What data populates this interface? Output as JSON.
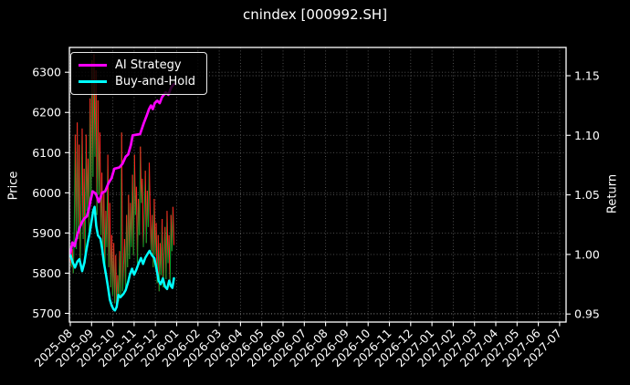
{
  "title": "cnindex [000992.SH]",
  "chart_data": {
    "type": "line",
    "title": "cnindex [000992.SH]",
    "background": "#000000",
    "grid": {
      "style": "dotted",
      "color": "#575757"
    },
    "x_axis": {
      "tick_labels": [
        "2025-08",
        "2025-09",
        "2025-10",
        "2025-11",
        "2025-12",
        "2026-01",
        "2026-02",
        "2026-03",
        "2026-04",
        "2026-05",
        "2026-06",
        "2026-07",
        "2026-08",
        "2026-09",
        "2026-10",
        "2026-11",
        "2026-12",
        "2027-01",
        "2027-02",
        "2027-03",
        "2027-04",
        "2027-05",
        "2027-06",
        "2027-07"
      ],
      "tick_rotation_deg": 45,
      "data_span_note": "data plotted only from 2025-08 through 2026-01"
    },
    "left_axis": {
      "label": "Price",
      "ticks": [
        5700,
        5800,
        5900,
        6000,
        6100,
        6200,
        6300
      ],
      "range": [
        5678,
        6364
      ]
    },
    "right_axis": {
      "label": "Return",
      "ticks": [
        "0.95",
        "1.00",
        "1.05",
        "1.10",
        "1.15"
      ],
      "range": [
        0.943,
        1.174
      ]
    },
    "legend": {
      "position": "upper-left",
      "items": [
        {
          "label": "AI Strategy",
          "color": "#ff00ff"
        },
        {
          "label": "Buy-and-Hold",
          "color": "#00ffff"
        }
      ]
    },
    "series": [
      {
        "name": "price-daily",
        "axis": "left",
        "style": "updown-colored-segments",
        "colors": {
          "up": "#00a32a",
          "down": "#ff1f1f"
        },
        "t_start_months": 0,
        "t_step_months": 0.0464,
        "values": [
          5835,
          5815,
          5860,
          5800,
          5905,
          6145,
          5860,
          6175,
          5885,
          6120,
          5830,
          5975,
          6160,
          5885,
          6060,
          5825,
          6145,
          5955,
          6085,
          5905,
          6235,
          5990,
          6330,
          6040,
          6345,
          6090,
          6305,
          5945,
          6230,
          5995,
          6150,
          5895,
          6050,
          5850,
          6000,
          5800,
          5955,
          5865,
          6095,
          5815,
          5975,
          5765,
          5895,
          5745,
          5875,
          5725,
          5845,
          5715,
          5795,
          5730,
          5855,
          5745,
          6150,
          5755,
          5820,
          5885,
          5760,
          5945,
          5815,
          5995,
          5835,
          5975,
          5865,
          6045,
          5845,
          6095,
          5945,
          6015,
          5825,
          5985,
          5895,
          6115,
          5975,
          6035,
          5865,
          5945,
          6055,
          5875,
          6005,
          5915,
          6075,
          5935,
          5855,
          5945,
          5815,
          5985,
          5845,
          5925,
          5775,
          5895,
          5755,
          5875,
          5795,
          5935,
          5765,
          5845,
          5915,
          5785,
          5955,
          5825,
          5895,
          5765,
          5945,
          5855,
          5965,
          5870
        ]
      },
      {
        "name": "AI Strategy",
        "axis": "right",
        "color": "#ff00ff",
        "points": [
          [
            0,
            1.001
          ],
          [
            0.1,
            1.01
          ],
          [
            0.2,
            1.007
          ],
          [
            0.32,
            1.016
          ],
          [
            0.43,
            1.022
          ],
          [
            0.55,
            1.027
          ],
          [
            0.65,
            1.03
          ],
          [
            0.78,
            1.032
          ],
          [
            0.86,
            1.037
          ],
          [
            0.95,
            1.045
          ],
          [
            1.05,
            1.053
          ],
          [
            1.2,
            1.051
          ],
          [
            1.34,
            1.044
          ],
          [
            1.5,
            1.052
          ],
          [
            1.64,
            1.053
          ],
          [
            1.8,
            1.06
          ],
          [
            1.94,
            1.064
          ],
          [
            2.07,
            1.072
          ],
          [
            2.3,
            1.073
          ],
          [
            2.45,
            1.076
          ],
          [
            2.6,
            1.082
          ],
          [
            2.72,
            1.084
          ],
          [
            2.85,
            1.092
          ],
          [
            2.93,
            1.1
          ],
          [
            3.28,
            1.101
          ],
          [
            3.45,
            1.11
          ],
          [
            3.6,
            1.117
          ],
          [
            3.7,
            1.122
          ],
          [
            3.79,
            1.125
          ],
          [
            3.88,
            1.122
          ],
          [
            3.97,
            1.127
          ],
          [
            4.09,
            1.129
          ],
          [
            4.2,
            1.127
          ],
          [
            4.31,
            1.132
          ],
          [
            4.48,
            1.136
          ],
          [
            4.61,
            1.134
          ],
          [
            4.74,
            1.14
          ],
          [
            4.87,
            1.143
          ]
        ]
      },
      {
        "name": "Buy-and-Hold",
        "axis": "right",
        "color": "#00ffff",
        "points": [
          [
            0,
            1.0
          ],
          [
            0.1,
            0.994
          ],
          [
            0.22,
            0.989
          ],
          [
            0.33,
            0.994
          ],
          [
            0.43,
            0.996
          ],
          [
            0.56,
            0.986
          ],
          [
            0.66,
            0.993
          ],
          [
            0.74,
            1.002
          ],
          [
            0.82,
            1.01
          ],
          [
            0.91,
            1.018
          ],
          [
            1.0,
            1.028
          ],
          [
            1.08,
            1.037
          ],
          [
            1.14,
            1.04
          ],
          [
            1.22,
            1.024
          ],
          [
            1.3,
            1.016
          ],
          [
            1.42,
            1.013
          ],
          [
            1.5,
            1.004
          ],
          [
            1.58,
            0.993
          ],
          [
            1.68,
            0.983
          ],
          [
            1.77,
            0.973
          ],
          [
            1.86,
            0.962
          ],
          [
            1.95,
            0.957
          ],
          [
            2.03,
            0.954
          ],
          [
            2.1,
            0.953
          ],
          [
            2.18,
            0.956
          ],
          [
            2.26,
            0.966
          ],
          [
            2.35,
            0.964
          ],
          [
            2.5,
            0.967
          ],
          [
            2.6,
            0.97
          ],
          [
            2.72,
            0.977
          ],
          [
            2.8,
            0.983
          ],
          [
            2.9,
            0.988
          ],
          [
            3.0,
            0.983
          ],
          [
            3.1,
            0.987
          ],
          [
            3.2,
            0.992
          ],
          [
            3.32,
            0.997
          ],
          [
            3.42,
            0.992
          ],
          [
            3.52,
            0.997
          ],
          [
            3.62,
            1.0
          ],
          [
            3.72,
            1.003
          ],
          [
            3.85,
            0.999
          ],
          [
            3.95,
            0.997
          ],
          [
            4.05,
            0.988
          ],
          [
            4.15,
            0.978
          ],
          [
            4.25,
            0.975
          ],
          [
            4.35,
            0.98
          ],
          [
            4.45,
            0.973
          ],
          [
            4.55,
            0.971
          ],
          [
            4.65,
            0.978
          ],
          [
            4.72,
            0.974
          ],
          [
            4.8,
            0.972
          ],
          [
            4.87,
            0.98
          ]
        ]
      }
    ]
  }
}
